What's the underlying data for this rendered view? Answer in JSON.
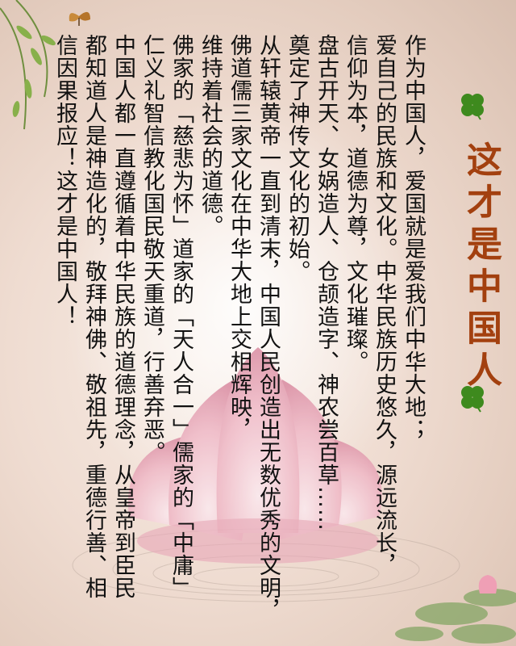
{
  "title": "这才是中国人",
  "poem": [
    "作为中国人，爱国就是爱我们中华大地；",
    "爱自己的民族和文化。中华民族历史悠久，源远流长，",
    "信仰为本，道德为尊，文化璀璨。",
    "盘古开天、女娲造人、仓颉造字、神农尝百草……",
    "奠定了神传文化的初始。",
    "从轩辕黄帝一直到清末，中国人民创造出无数优秀的文明，",
    "佛道儒三家文化在中华大地上交相辉映，",
    "维持着社会的道德。",
    "佛家的「慈悲为怀」道家的「天人合一」儒家的「中庸」",
    "仁义礼智信教化国民敬天重道，行善弃恶。",
    "中国人都一直遵循着中华民族的道德理念，从皇帝到臣民",
    "都知道人是神造化的，敬拜神佛、敬祖先，重德行善、相",
    "信因果报应！这才是中国人！"
  ],
  "decor": {
    "clover_icon": "four-leaf-clover",
    "flower_icon": "lotus",
    "butterfly_icon": "butterfly"
  }
}
